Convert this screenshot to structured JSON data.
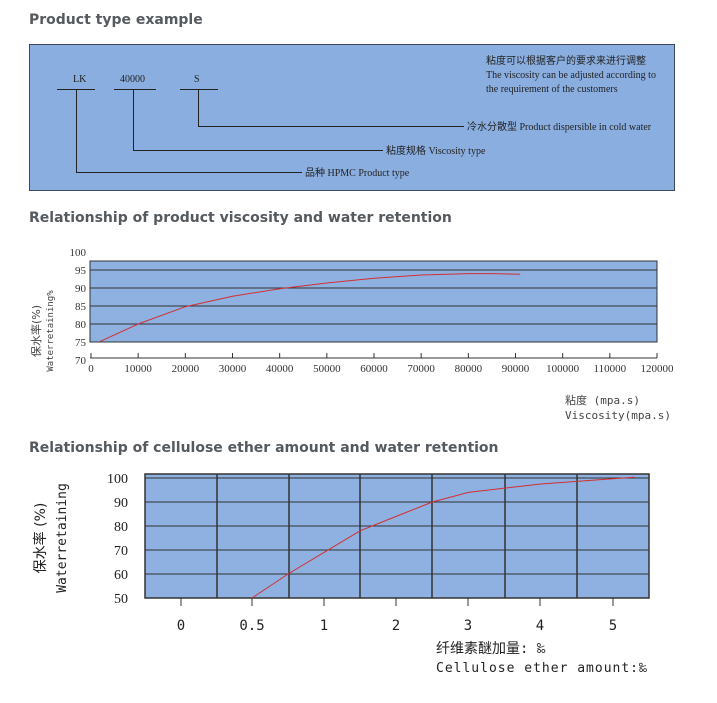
{
  "sections": {
    "product_type": {
      "title": "Product type example",
      "codes": [
        "LK",
        "40000",
        "S"
      ],
      "note_cn": "粘度可以根据客户的要求来进行调整",
      "note_en_1": "The viscosity can be adjusted according to",
      "note_en_2": "the requirement of the customers",
      "label_s": "冷水分散型 Product dispersible in cold water",
      "label_viscosity": "粘度规格 Viscosity type",
      "label_variety": "品种 HPMC Product type"
    },
    "viscosity": {
      "title": "Relationship of product viscosity and water retention"
    },
    "cellulose": {
      "title": "Relationship of cellulose ether amount and water retention"
    }
  },
  "colors": {
    "plot_bg": "#8eb1e2",
    "grid": "#333333",
    "curve": "#d32f2f",
    "title": "#555a5f"
  },
  "chart_data": [
    {
      "type": "line",
      "ylabel": "保水率(%)",
      "ylabel2": "Waterretaining%",
      "xlabel": "粘度 (mpa.s)",
      "xlabel2": "Viscosity(mpa.s)",
      "x_ticks": [
        "0",
        "10000",
        "20000",
        "30000",
        "40000",
        "50000",
        "60000",
        "70000",
        "80000",
        "90000",
        "100000",
        "110000",
        "120000"
      ],
      "y_ticks": [
        "70",
        "75",
        "80",
        "85",
        "90",
        "95",
        "100"
      ],
      "xlim": [
        0,
        120000
      ],
      "ylim": [
        70,
        100
      ],
      "grid": true,
      "series": [
        {
          "x": [
            2000,
            10000,
            20000,
            30000,
            40000,
            50000,
            60000,
            70000,
            80000,
            85000,
            91000
          ],
          "y": [
            75.2,
            80,
            84.8,
            87.7,
            89.8,
            91.4,
            92.7,
            93.6,
            94,
            94,
            93.8
          ]
        }
      ]
    },
    {
      "type": "line",
      "ylabel": "保水率 (%)",
      "ylabel2": "Waterretaining",
      "xlabel": "纤维素醚加量: ‰",
      "xlabel2": "Cellulose ether amount:‰",
      "x_ticks": [
        "0",
        "0.5",
        "1",
        "2",
        "3",
        "4",
        "5"
      ],
      "y_ticks": [
        "50",
        "60",
        "70",
        "80",
        "90",
        "100"
      ],
      "ylim": [
        50,
        103
      ],
      "grid": true,
      "series": [
        {
          "x": [
            "0.5",
            "0.75",
            "1",
            "1.5",
            "2",
            "2.5",
            "3",
            "4",
            "5",
            "5.3"
          ],
          "y": [
            50,
            60,
            69,
            78,
            84,
            90,
            94,
            97.5,
            99.7,
            100.3
          ]
        }
      ]
    }
  ]
}
